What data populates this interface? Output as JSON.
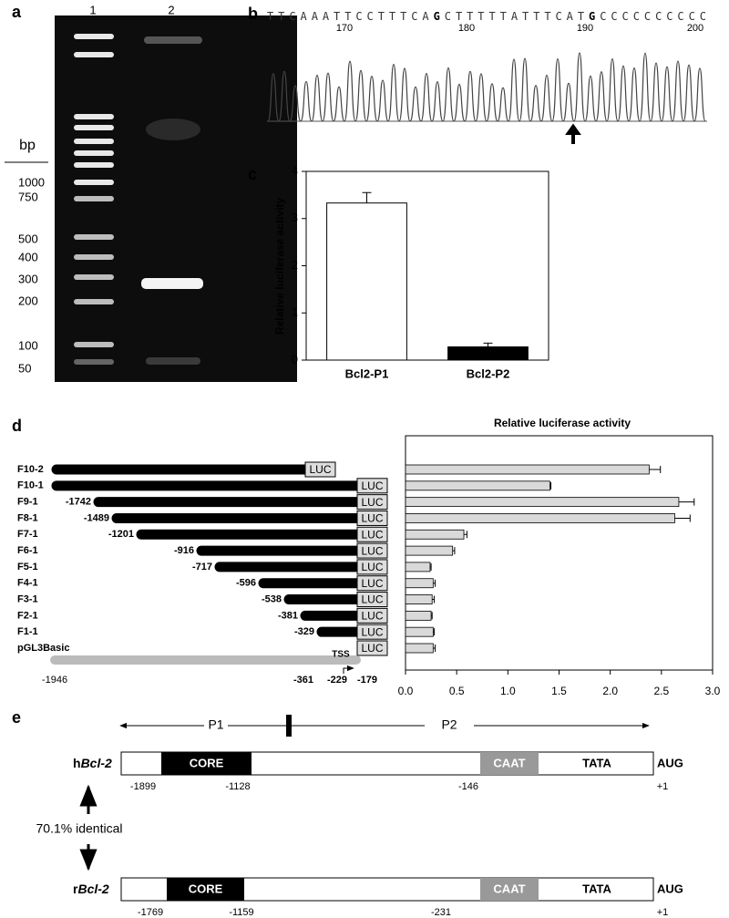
{
  "panel_a": {
    "label": "a",
    "lanes": [
      "1",
      "2"
    ],
    "unit": "bp",
    "size_labels": [
      "1000",
      "750",
      "500",
      "400",
      "300",
      "200",
      "100",
      "50"
    ]
  },
  "panel_b": {
    "label": "b",
    "sequence": [
      {
        "text": "TTCAAATTCCTTTCA",
        "bold": false
      },
      {
        "text": "G",
        "bold": true
      },
      {
        "text": "CTTTTTATTTCAT",
        "bold": false
      },
      {
        "text": "G",
        "bold": true
      },
      {
        "text": "CCCCCCCCCC",
        "bold": false
      }
    ],
    "positions": [
      "170",
      "180",
      "190",
      "200"
    ]
  },
  "panel_c_label": "c",
  "panel_d_label": "d",
  "chart_data": [
    {
      "type": "bar",
      "ylabel": "Relative luciferase activity",
      "categories": [
        "Bcl2-P1",
        "Bcl2-P2"
      ],
      "values": [
        3.33,
        0.28
      ],
      "errors": [
        0.22,
        0.08
      ],
      "colors": [
        "#ffffff",
        "#000000"
      ],
      "ylim": [
        0,
        4
      ],
      "yticks": [
        0,
        1,
        2,
        3,
        4
      ]
    },
    {
      "type": "barh",
      "title": "Relative luciferase activity",
      "categories": [
        "F10-2",
        "F10-1",
        "F9-1",
        "F8-1",
        "F7-1",
        "F6-1",
        "F5-1",
        "F4-1",
        "F3-1",
        "F2-1",
        "F1-1",
        "pGL3Basic"
      ],
      "values": [
        2.38,
        1.41,
        2.67,
        2.63,
        0.57,
        0.46,
        0.24,
        0.27,
        0.26,
        0.25,
        0.27,
        0.27
      ],
      "errors": [
        0.11,
        0.01,
        0.15,
        0.15,
        0.03,
        0.02,
        0.01,
        0.02,
        0.02,
        0.01,
        0.01,
        0.02
      ],
      "color": "#d9d9d9",
      "xlim": [
        0,
        3
      ],
      "xticks": [
        {
          "value": 0,
          "label": "0.0"
        },
        {
          "value": 0.5,
          "label": "0.5"
        },
        {
          "value": 1,
          "label": "1.0"
        },
        {
          "value": 1.5,
          "label": "1.5"
        },
        {
          "value": 2,
          "label": "2.0"
        },
        {
          "value": 2.5,
          "label": "2.5"
        },
        {
          "value": 3,
          "label": "3.0"
        }
      ]
    }
  ],
  "constructs": [
    {
      "luc": "LUC"
    },
    {
      "luc": "LUC"
    },
    {
      "start": "-1742",
      "luc": "LUC"
    },
    {
      "start": "-1489",
      "luc": "LUC"
    },
    {
      "start": "-1201",
      "luc": "LUC"
    },
    {
      "start": "-916",
      "luc": "LUC"
    },
    {
      "start": "-717",
      "luc": "LUC"
    },
    {
      "start": "-596",
      "luc": "LUC"
    },
    {
      "start": "-538",
      "luc": "LUC"
    },
    {
      "start": "-381",
      "luc": "LUC"
    },
    {
      "start": "-329",
      "luc": "LUC"
    },
    {
      "luc": "LUC"
    }
  ],
  "pgl3_coords": [
    "-1946",
    "-361",
    "-229",
    "-179"
  ],
  "tss": "TSS",
  "panel_e": {
    "label": "e",
    "p1": "P1",
    "p2": "P2",
    "gene": "Bcl-2",
    "identity": "70.1% identical",
    "human": {
      "prefix": "h",
      "core": "CORE",
      "caat": "CAAT",
      "tata": "TATA",
      "aug": "AUG",
      "coords": [
        "-1899",
        "-1128",
        "-146",
        "+1"
      ]
    },
    "rat": {
      "prefix": "r",
      "core": "CORE",
      "caat": "CAAT",
      "tata": "TATA",
      "aug": "AUG",
      "coords": [
        "-1769",
        "-1159",
        "-231",
        "+1"
      ]
    }
  }
}
